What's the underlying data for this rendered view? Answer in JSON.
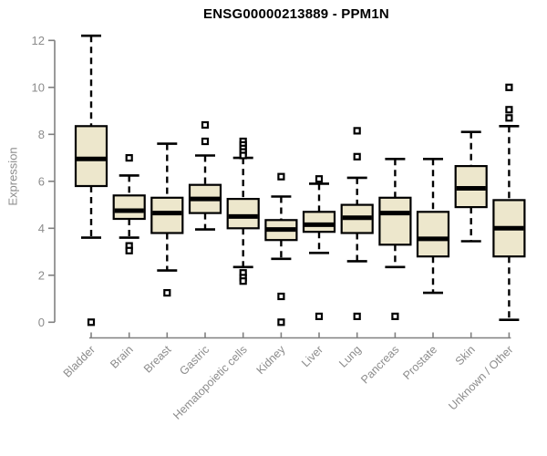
{
  "chart_data": {
    "type": "boxplot",
    "title": "ENSG00000213889 - PPM1N",
    "ylabel": "Expression",
    "xlabel": "",
    "ylim": [
      0,
      12
    ],
    "yticks": [
      0,
      2,
      4,
      6,
      8,
      10,
      12
    ],
    "grid": false,
    "legend": "none",
    "categories": [
      "Bladder",
      "Brain",
      "Breast",
      "Gastric",
      "Hematopoietic cells",
      "Kidney",
      "Liver",
      "Lung",
      "Pancreas",
      "Prostate",
      "Skin",
      "Unknown / Other"
    ],
    "boxes": [
      {
        "category": "Bladder",
        "whisker_low": 3.6,
        "q1": 5.8,
        "median": 6.95,
        "q3": 8.35,
        "whisker_high": 12.2,
        "outliers": [
          0.0
        ]
      },
      {
        "category": "Brain",
        "whisker_low": 3.6,
        "q1": 4.4,
        "median": 4.75,
        "q3": 5.4,
        "whisker_high": 6.25,
        "outliers": [
          7.0,
          3.25,
          3.05
        ]
      },
      {
        "category": "Breast",
        "whisker_low": 2.2,
        "q1": 3.8,
        "median": 4.65,
        "q3": 5.3,
        "whisker_high": 7.6,
        "outliers": [
          1.25
        ]
      },
      {
        "category": "Gastric",
        "whisker_low": 3.95,
        "q1": 4.65,
        "median": 5.25,
        "q3": 5.85,
        "whisker_high": 7.1,
        "outliers": [
          8.4,
          7.7
        ]
      },
      {
        "category": "Hematopoietic cells",
        "whisker_low": 2.35,
        "q1": 4.0,
        "median": 4.5,
        "q3": 5.25,
        "whisker_high": 7.0,
        "outliers": [
          7.7,
          7.55,
          7.4,
          7.25,
          7.1,
          2.1,
          1.9,
          1.75
        ]
      },
      {
        "category": "Kidney",
        "whisker_low": 2.7,
        "q1": 3.5,
        "median": 3.95,
        "q3": 4.35,
        "whisker_high": 5.35,
        "outliers": [
          6.2,
          1.1,
          0.0
        ]
      },
      {
        "category": "Liver",
        "whisker_low": 2.95,
        "q1": 3.85,
        "median": 4.15,
        "q3": 4.7,
        "whisker_high": 5.9,
        "outliers": [
          6.1,
          0.25
        ]
      },
      {
        "category": "Lung",
        "whisker_low": 2.6,
        "q1": 3.8,
        "median": 4.45,
        "q3": 5.0,
        "whisker_high": 6.15,
        "outliers": [
          8.15,
          7.05,
          0.25
        ]
      },
      {
        "category": "Pancreas",
        "whisker_low": 2.35,
        "q1": 3.3,
        "median": 4.65,
        "q3": 5.3,
        "whisker_high": 6.95,
        "outliers": [
          0.25
        ]
      },
      {
        "category": "Prostate",
        "whisker_low": 1.25,
        "q1": 2.8,
        "median": 3.55,
        "q3": 4.7,
        "whisker_high": 6.95,
        "outliers": []
      },
      {
        "category": "Skin",
        "whisker_low": 3.45,
        "q1": 4.9,
        "median": 5.7,
        "q3": 6.65,
        "whisker_high": 8.1,
        "outliers": []
      },
      {
        "category": "Unknown / Other",
        "whisker_low": 0.1,
        "q1": 2.8,
        "median": 4.0,
        "q3": 5.2,
        "whisker_high": 8.35,
        "outliers": [
          10.0,
          9.05,
          8.7
        ]
      }
    ],
    "colors": {
      "background": "#FFFFFF",
      "box_fill": "#EDE7CC",
      "box_border": "#000000",
      "median": "#000000",
      "whisker": "#000000",
      "outlier": "#000000",
      "axis": "#808080",
      "tick_label": "#8C8C8C",
      "title": "#000000"
    }
  }
}
